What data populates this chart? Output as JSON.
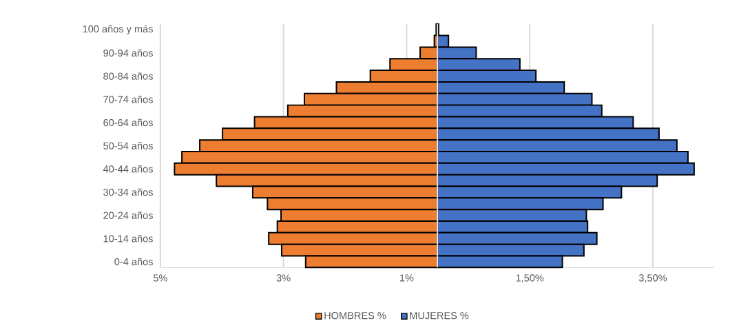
{
  "chart_data": {
    "type": "bar",
    "orientation": "horizontal",
    "stacked": true,
    "categories": [
      "100 años y más",
      null,
      "90-94 años",
      null,
      "80-84 años",
      null,
      "70-74 años",
      null,
      "60-64 años",
      null,
      "50-54 años",
      null,
      "40-44 años",
      null,
      "30-34 años",
      null,
      "20-24 años",
      null,
      "10-14 años",
      null,
      "0-4 años"
    ],
    "series": [
      {
        "name": "HOMBRES %",
        "color": "#ed7d31",
        "values": [
          -0.02,
          -0.05,
          -0.28,
          -0.77,
          -1.09,
          -1.64,
          -2.16,
          -2.43,
          -2.97,
          -3.49,
          -3.86,
          -4.15,
          -4.27,
          -3.59,
          -3.0,
          -2.76,
          -2.54,
          -2.6,
          -2.74,
          -2.53,
          -2.14
        ]
      },
      {
        "name": "MUJERES %",
        "color": "#4472c4",
        "values": [
          0.02,
          0.18,
          0.63,
          1.34,
          1.6,
          2.06,
          2.51,
          2.67,
          3.18,
          3.6,
          3.89,
          4.07,
          4.17,
          3.57,
          2.99,
          2.69,
          2.42,
          2.44,
          2.59,
          2.38,
          2.03
        ]
      }
    ],
    "xlim": [
      -4.5,
      4.5
    ],
    "xticks": [
      {
        "value": -4.5,
        "label": "5%"
      },
      {
        "value": -2.5,
        "label": "3%"
      },
      {
        "value": -0.5,
        "label": "1%"
      },
      {
        "value": 1.5,
        "label": "1,50%"
      },
      {
        "value": 3.5,
        "label": "3,50%"
      }
    ],
    "grid": "x",
    "legend": "bottom"
  }
}
